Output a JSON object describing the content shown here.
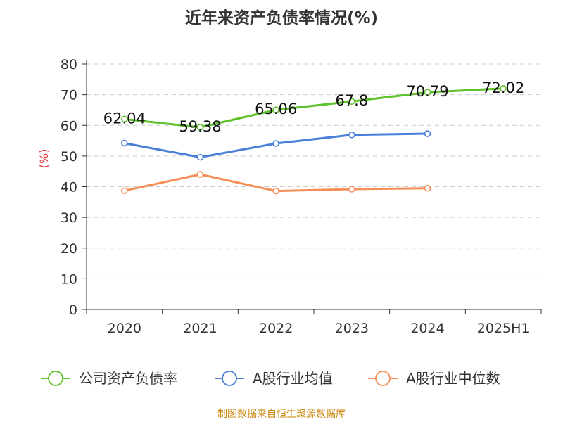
{
  "chart_data": {
    "type": "line",
    "title": "近年来资产负债率情况(%)",
    "ylabel": "(%)",
    "xlabel": "",
    "ylim": [
      0,
      80
    ],
    "yticks": [
      0,
      10,
      20,
      30,
      40,
      50,
      60,
      70,
      80
    ],
    "categories": [
      "2020",
      "2021",
      "2022",
      "2023",
      "2024",
      "2025H1"
    ],
    "series": [
      {
        "name": "公司资产负债率",
        "color": "#5ec22a",
        "values": [
          62.04,
          59.38,
          65.06,
          67.8,
          70.79,
          72.02
        ],
        "labels": [
          "62.04",
          "59.38",
          "65.06",
          "67.8",
          "70.79",
          "72.02"
        ],
        "show_labels": true
      },
      {
        "name": "A股行业均值",
        "color": "#4a7fd8",
        "values": [
          54.2,
          49.6,
          54.1,
          56.9,
          57.3,
          null
        ],
        "show_labels": false
      },
      {
        "name": "A股行业中位数",
        "color": "#f68e5a",
        "values": [
          38.7,
          44.0,
          38.6,
          39.2,
          39.5,
          null
        ],
        "show_labels": false
      }
    ],
    "grid": true,
    "legend_position": "bottom"
  },
  "source_text": "制图数据来自恒生聚源数据库"
}
